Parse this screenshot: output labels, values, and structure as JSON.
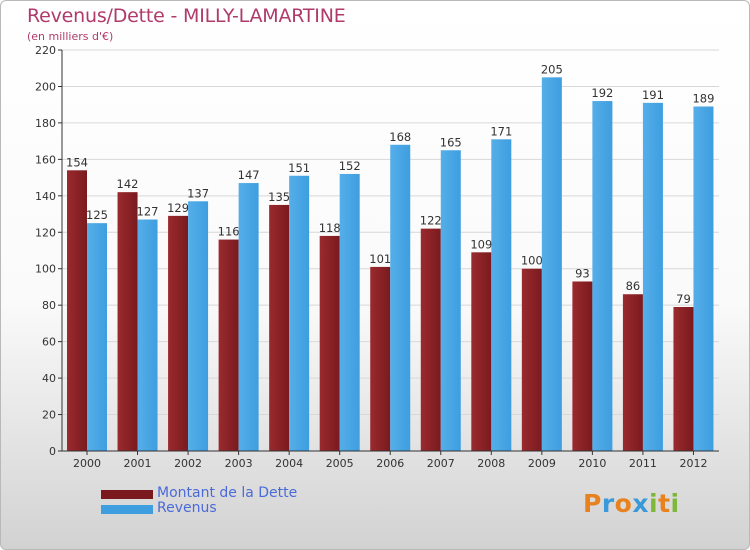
{
  "title": "Revenus/Dette - MILLY-LAMARTINE",
  "subtitle": "(en milliers d'€)",
  "logo": {
    "text": "Proxiti",
    "letters": [
      {
        "ch": "P",
        "color": "#e8821e"
      },
      {
        "ch": "r",
        "color": "#3a9ad9"
      },
      {
        "ch": "o",
        "color": "#e8821e"
      },
      {
        "ch": "x",
        "color": "#3a9ad9"
      },
      {
        "ch": "i",
        "color": "#7db83a"
      },
      {
        "ch": "t",
        "color": "#e8821e"
      },
      {
        "ch": "i",
        "color": "#7db83a"
      }
    ]
  },
  "colors": {
    "dette": "#7a1a1e",
    "revenus": "#3e9ee0",
    "title": "#b03a6a",
    "legend_text": "#4a6ad8"
  },
  "chart_data": {
    "type": "bar",
    "categories": [
      "2000",
      "2001",
      "2002",
      "2003",
      "2004",
      "2005",
      "2006",
      "2007",
      "2008",
      "2009",
      "2010",
      "2011",
      "2012"
    ],
    "series": [
      {
        "name": "Montant de la Dette",
        "values": [
          154,
          142,
          129,
          116,
          135,
          118,
          101,
          122,
          109,
          100,
          93,
          86,
          79
        ]
      },
      {
        "name": "Revenus",
        "values": [
          125,
          127,
          137,
          147,
          151,
          152,
          168,
          165,
          171,
          205,
          192,
          191,
          189
        ]
      }
    ],
    "ylim": [
      0,
      220
    ],
    "yticks": [
      "0",
      "20",
      "40",
      "60",
      "80",
      "100",
      "120",
      "140",
      "160",
      "180",
      "200",
      "220"
    ],
    "grid": true,
    "legend_position": "bottom-left"
  }
}
